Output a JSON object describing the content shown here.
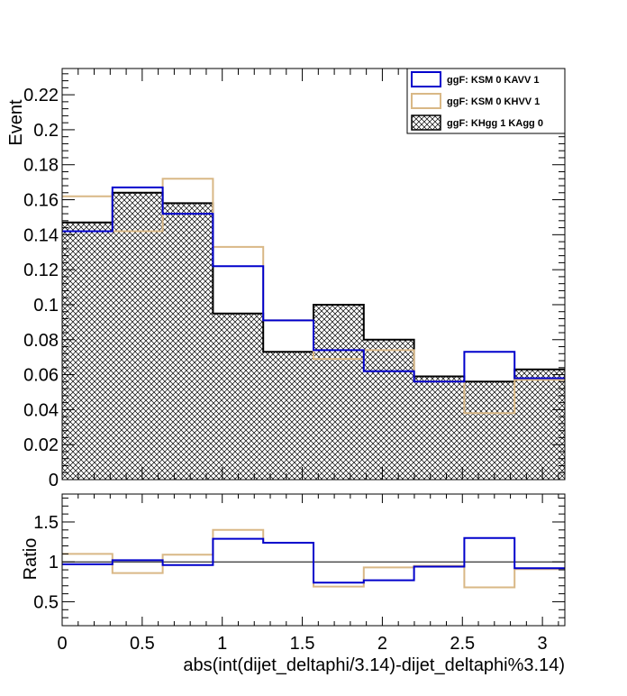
{
  "chart_data": [
    {
      "type": "histogram",
      "panel": "top",
      "ylabel": "Event",
      "ylim": [
        0,
        0.235
      ],
      "y_ticks": [
        "0",
        "0.02",
        "0.04",
        "0.06",
        "0.08",
        "0.1",
        "0.12",
        "0.14",
        "0.16",
        "0.18",
        "0.2",
        "0.22"
      ],
      "bin_edges": [
        0,
        0.314,
        0.628,
        0.942,
        1.256,
        1.57,
        1.884,
        2.198,
        2.512,
        2.826,
        3.14
      ],
      "xlim": [
        0,
        3.14
      ],
      "legend_position": "top-right",
      "series": [
        {
          "name": "ggF: KHgg 1 KAgg 0",
          "color": "#000000",
          "style": "hatched",
          "values": [
            0.147,
            0.164,
            0.158,
            0.095,
            0.073,
            0.1,
            0.08,
            0.059,
            0.056,
            0.063
          ]
        },
        {
          "name": "ggF: KSM 0 KHVV 1",
          "color": "#d9b886",
          "style": "line",
          "values": [
            0.162,
            0.142,
            0.172,
            0.133,
            0.091,
            0.069,
            0.074,
            0.056,
            0.038,
            0.057
          ]
        },
        {
          "name": "ggF: KSM 0 KAVV 1",
          "color": "#0000cc",
          "style": "line",
          "values": [
            0.142,
            0.167,
            0.152,
            0.122,
            0.091,
            0.074,
            0.062,
            0.056,
            0.073,
            0.058
          ]
        }
      ]
    },
    {
      "type": "histogram",
      "panel": "bottom",
      "ylabel": "Ratio",
      "xlabel": "abs(int(dijet_deltaphi/3.14)-dijet_deltaphi%3.14)",
      "ylim": [
        0.2,
        1.85
      ],
      "y_ticks": [
        "0.5",
        "1",
        "1.5"
      ],
      "x_ticks": [
        "0",
        "0.5",
        "1",
        "1.5",
        "2",
        "2.5",
        "3"
      ],
      "reference_line": 1,
      "bin_edges": [
        0,
        0.314,
        0.628,
        0.942,
        1.256,
        1.57,
        1.884,
        2.198,
        2.512,
        2.826,
        3.14
      ],
      "series": [
        {
          "name": "ggF: KSM 0 KHVV 1",
          "color": "#d9b886",
          "values": [
            1.1,
            0.86,
            1.09,
            1.4,
            1.24,
            0.69,
            0.93,
            0.95,
            0.68,
            0.91
          ]
        },
        {
          "name": "ggF: KSM 0 KAVV 1",
          "color": "#0000cc",
          "values": [
            0.97,
            1.02,
            0.96,
            1.29,
            1.24,
            0.74,
            0.77,
            0.94,
            1.3,
            0.92
          ]
        }
      ]
    }
  ],
  "legend": {
    "entries": [
      {
        "label": "ggF: KSM 0 KAVV 1",
        "color": "#0000cc",
        "style": "line"
      },
      {
        "label": "ggF: KSM 0 KHVV 1",
        "color": "#d9b886",
        "style": "line"
      },
      {
        "label": "ggF: KHgg 1 KAgg 0",
        "color": "#000000",
        "style": "hatched"
      }
    ]
  }
}
